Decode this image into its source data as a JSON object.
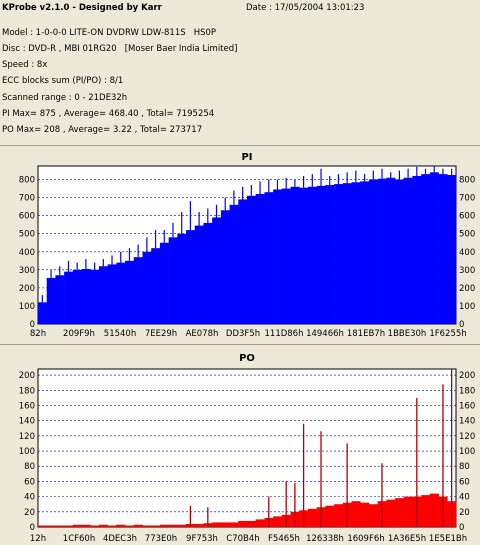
{
  "header": {
    "app_title": "KProbe v2.1.0 - Designed by Karr",
    "date_label": "Date : 17/05/2004 13:01:23",
    "lines": [
      "Model : 1-0-0-0 LITE-ON DVDRW LDW-811S   HS0P",
      "Disc : DVD-R , MBI 01RG20   [Moser Baer India Limited]",
      "Speed : 8x",
      "ECC blocks sum (PI/PO) : 8/1",
      "Scanned range : 0 - 21DE32h",
      "PI Max= 875 , Average= 468.40 , Total= 7195254",
      "PO Max= 208 , Average= 3.22 , Total= 273717"
    ]
  },
  "colors": {
    "pi": "#0000ff",
    "po": "#ff0000",
    "background": "#ece9d8",
    "plot_bg": "#ffffff",
    "grid": "#000080"
  },
  "chart_data": [
    {
      "type": "bar",
      "title": "PI",
      "ylim": [
        0,
        875
      ],
      "yticks": [
        0,
        100,
        200,
        300,
        400,
        500,
        600,
        700,
        800
      ],
      "xticks": [
        "82h",
        "209F9h",
        "51540h",
        "7EE29h",
        "AE078h",
        "DD3F5h",
        "111D86h",
        "149466h",
        "181EB7h",
        "1BBE30h",
        "1F6255h"
      ],
      "grid": true,
      "series": [
        {
          "values": [
            120,
            255,
            270,
            290,
            300,
            305,
            300,
            320,
            330,
            340,
            350,
            370,
            400,
            420,
            450,
            480,
            500,
            520,
            545,
            560,
            590,
            630,
            660,
            690,
            710,
            720,
            730,
            745,
            750,
            760,
            755,
            760,
            765,
            770,
            775,
            780,
            785,
            790,
            800,
            805,
            810,
            800,
            810,
            820,
            830,
            840,
            830,
            825
          ],
          "max": [
            160,
            300,
            320,
            350,
            340,
            360,
            340,
            360,
            380,
            400,
            420,
            440,
            480,
            520,
            520,
            560,
            620,
            680,
            620,
            640,
            660,
            700,
            740,
            760,
            770,
            790,
            800,
            800,
            810,
            800,
            820,
            830,
            860,
            820,
            830,
            840,
            850,
            830,
            850,
            860,
            840,
            850,
            860,
            870,
            860,
            875,
            860,
            860
          ]
        }
      ]
    },
    {
      "type": "bar",
      "title": "PO",
      "ylim": [
        0,
        208
      ],
      "yticks": [
        0,
        20,
        40,
        60,
        80,
        100,
        120,
        140,
        160,
        180,
        200
      ],
      "xticks": [
        "12h",
        "1CF60h",
        "4DEC3h",
        "773E0h",
        "9F753h",
        "C70B4h",
        "F5465h",
        "126338h",
        "1609F6h",
        "1A36E5h",
        "1E5E1Bh"
      ],
      "grid": true,
      "series": [
        {
          "values": [
            2,
            2,
            2,
            2,
            3,
            3,
            2,
            3,
            2,
            3,
            2,
            3,
            2,
            2,
            3,
            3,
            3,
            4,
            4,
            5,
            6,
            6,
            6,
            8,
            8,
            10,
            12,
            14,
            16,
            20,
            22,
            24,
            26,
            28,
            30,
            32,
            34,
            32,
            30,
            34,
            36,
            38,
            40,
            40,
            42,
            44,
            40,
            34
          ]
        }
      ],
      "spikes": [
        {
          "index": 17,
          "value": 28
        },
        {
          "index": 19,
          "value": 26
        },
        {
          "index": 26,
          "value": 40
        },
        {
          "index": 28,
          "value": 60
        },
        {
          "index": 29,
          "value": 58
        },
        {
          "index": 30,
          "value": 136
        },
        {
          "index": 32,
          "value": 126
        },
        {
          "index": 35,
          "value": 110
        },
        {
          "index": 39,
          "value": 84
        },
        {
          "index": 43,
          "value": 170
        },
        {
          "index": 46,
          "value": 188
        },
        {
          "index": 47,
          "value": 208
        }
      ]
    }
  ]
}
